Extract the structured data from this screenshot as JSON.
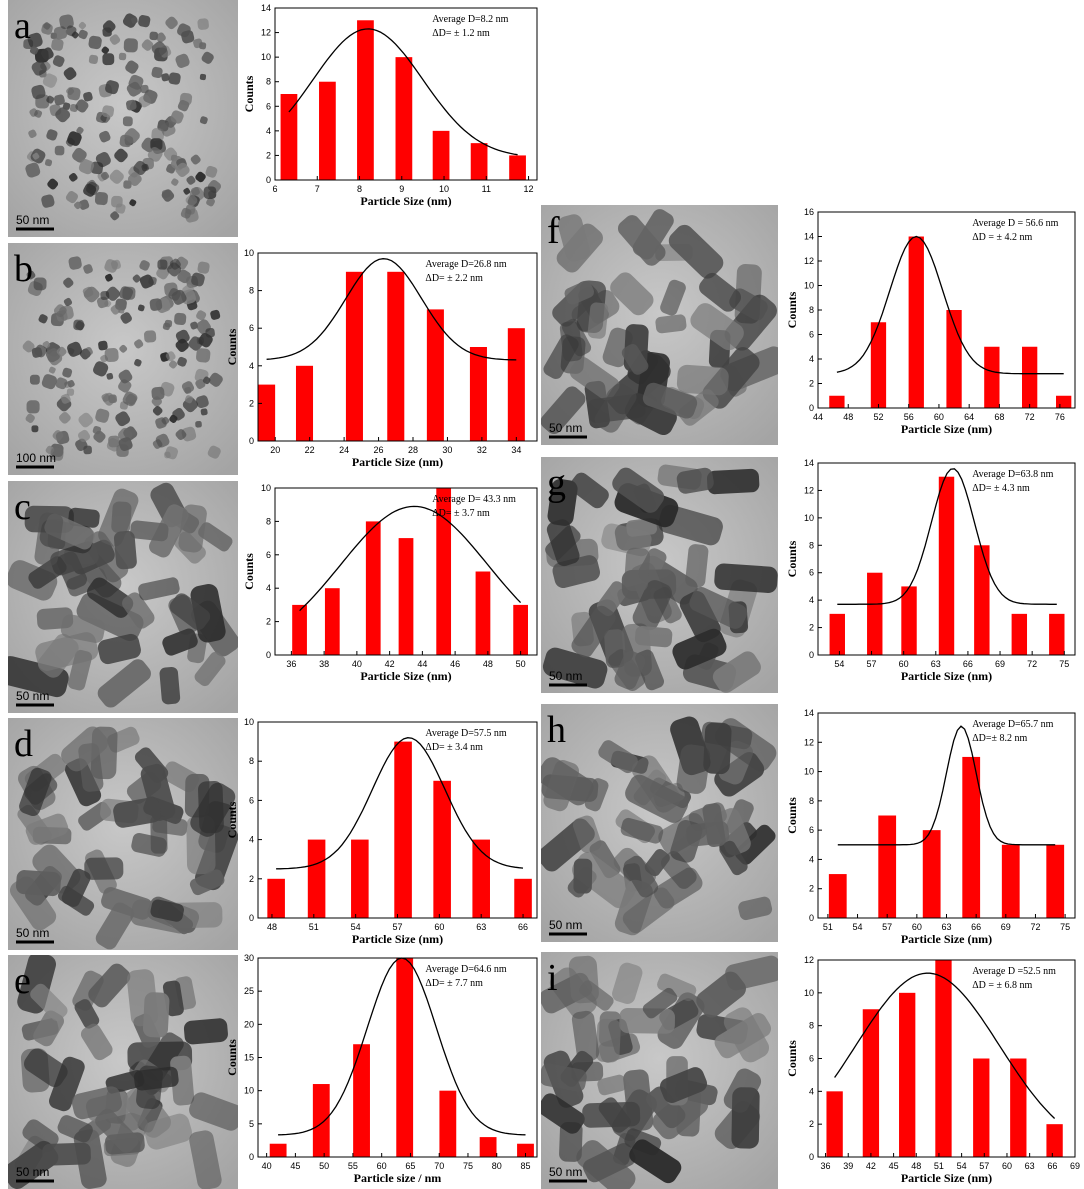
{
  "chart_data": [
    {
      "type": "bar",
      "panel_label": "a",
      "scale_bar": "50 nm",
      "x": [
        6.33,
        7.24,
        8.14,
        9.05,
        9.93,
        10.83,
        11.74
      ],
      "values": [
        7,
        8,
        13,
        10,
        4,
        3,
        2
      ],
      "color": "#ff0000",
      "xlim": [
        6,
        12.2
      ],
      "xticks": [
        6,
        7,
        8,
        9,
        10,
        11,
        12
      ],
      "ylim": [
        0,
        14
      ],
      "yticks": [
        0,
        2,
        4,
        6,
        8,
        10,
        12,
        14
      ],
      "xlabel": "Particle Size (nm)",
      "ylabel": "Counts",
      "annotations": [
        "Average  D=8.2 nm",
        "ΔD= ± 1.2 nm"
      ],
      "fit": {
        "center": 8.2,
        "height": 10.5,
        "base": 1.8,
        "sigma": 1.3
      }
    },
    {
      "type": "bar",
      "panel_label": "b",
      "scale_bar": "100 nm",
      "x": [
        19.5,
        21.7,
        24.6,
        27.0,
        29.3,
        31.8,
        34.0
      ],
      "values": [
        3,
        4,
        9,
        9,
        7,
        5,
        6
      ],
      "color": "#ff0000",
      "xlim": [
        19,
        35.2
      ],
      "xticks": [
        20,
        22,
        24,
        26,
        28,
        30,
        32,
        34
      ],
      "ylim": [
        0,
        10
      ],
      "yticks": [
        0,
        2,
        4,
        6,
        8,
        10
      ],
      "xlabel": "Particle Size (nm)",
      "ylabel": "Counts",
      "annotations": [
        "Average D=26.8 nm",
        "ΔD= ± 2.2 nm"
      ],
      "fit": {
        "center": 26.3,
        "height": 5.4,
        "base": 4.3,
        "sigma": 2.2
      }
    },
    {
      "type": "bar",
      "panel_label": "c",
      "scale_bar": "50 nm",
      "x": [
        36.5,
        38.5,
        41.0,
        43.0,
        45.3,
        47.7,
        50.0
      ],
      "values": [
        3,
        4,
        8,
        7,
        10,
        5,
        3
      ],
      "color": "#ff0000",
      "xlim": [
        35,
        51
      ],
      "xticks": [
        36,
        38,
        40,
        42,
        44,
        46,
        48,
        50
      ],
      "ylim": [
        0,
        10
      ],
      "yticks": [
        0,
        2,
        4,
        6,
        8,
        10
      ],
      "xlabel": "Particle Size (nm)",
      "ylabel": "Counts",
      "annotations": [
        "Average D= 43.3 nm",
        "ΔD= ± 3.7 nm"
      ],
      "fit": {
        "center": 43.5,
        "height": 8.9,
        "base": 0,
        "sigma": 4.5
      }
    },
    {
      "type": "bar",
      "panel_label": "d",
      "scale_bar": "50 nm",
      "x": [
        48.3,
        51.2,
        54.3,
        57.4,
        60.2,
        63.0,
        66.0
      ],
      "values": [
        2,
        4,
        4,
        9,
        7,
        4,
        2
      ],
      "color": "#ff0000",
      "xlim": [
        47,
        67
      ],
      "xticks": [
        48,
        51,
        54,
        57,
        60,
        63,
        66
      ],
      "ylim": [
        0,
        10
      ],
      "yticks": [
        0,
        2,
        4,
        6,
        8,
        10
      ],
      "xlabel": "Particle Size (nm)",
      "ylabel": "Counts",
      "annotations": [
        "Average D=57.5 nm",
        "ΔD= ± 3.4 nm"
      ],
      "fit": {
        "center": 57.8,
        "height": 6.7,
        "base": 2.5,
        "sigma": 2.6
      }
    },
    {
      "type": "bar",
      "panel_label": "e",
      "scale_bar": "50 nm",
      "x": [
        42,
        49.5,
        56.5,
        64,
        71.5,
        78.5,
        85
      ],
      "values": [
        2,
        11,
        17,
        30,
        10,
        3,
        2
      ],
      "color": "#ff0000",
      "xlim": [
        38.5,
        87
      ],
      "xticks": [
        40,
        45,
        50,
        55,
        60,
        65,
        70,
        75,
        80,
        85
      ],
      "ylim": [
        0,
        30
      ],
      "yticks": [
        0,
        5,
        10,
        15,
        20,
        25,
        30
      ],
      "xlabel": "Particle size / nm",
      "ylabel": "Counts",
      "annotations": [
        "Average D=64.6 nm",
        "ΔD= ± 7.7 nm"
      ],
      "fit": {
        "center": 63.5,
        "height": 26.7,
        "base": 3.3,
        "sigma": 6
      }
    },
    {
      "type": "bar",
      "panel_label": "f",
      "scale_bar": "50 nm",
      "x": [
        46.5,
        52,
        57,
        62,
        67,
        72,
        76.5
      ],
      "values": [
        1,
        7,
        14,
        8,
        5,
        5,
        1
      ],
      "color": "#ff0000",
      "xlim": [
        44,
        78
      ],
      "xticks": [
        44,
        48,
        52,
        56,
        60,
        64,
        68,
        72,
        76
      ],
      "ylim": [
        0,
        16
      ],
      "yticks": [
        0,
        2,
        4,
        6,
        8,
        10,
        12,
        14,
        16
      ],
      "xlabel": "Particle Size (nm)",
      "ylabel": "Counts",
      "annotations": [
        "Average D = 56.6 nm",
        "ΔD = ± 4.2 nm"
      ],
      "fit": {
        "center": 57,
        "height": 11.2,
        "base": 2.8,
        "sigma": 3.5
      }
    },
    {
      "type": "bar",
      "panel_label": "g",
      "scale_bar": "50 nm",
      "x": [
        53.8,
        57.3,
        60.5,
        64,
        67.3,
        70.8,
        74.3
      ],
      "values": [
        3,
        6,
        5,
        13,
        8,
        3,
        3
      ],
      "color": "#ff0000",
      "xlim": [
        52,
        76
      ],
      "xticks": [
        54,
        57,
        60,
        63,
        66,
        69,
        72,
        75
      ],
      "ylim": [
        0,
        14
      ],
      "yticks": [
        0,
        2,
        4,
        6,
        8,
        10,
        12,
        14
      ],
      "xlabel": "Particle Size (nm)",
      "ylabel": "Counts",
      "annotations": [
        "Average D=63.8 nm",
        "ΔD= ± 4.3 nm"
      ],
      "fit": {
        "center": 64.6,
        "height": 9.9,
        "base": 3.7,
        "sigma": 2
      }
    },
    {
      "type": "bar",
      "panel_label": "h",
      "scale_bar": "50 nm",
      "x": [
        52,
        57,
        61.5,
        65.5,
        69.5,
        74
      ],
      "values": [
        3,
        7,
        6,
        11,
        5,
        5
      ],
      "color": "#ff0000",
      "xlim": [
        50,
        76
      ],
      "xticks": [
        51,
        54,
        57,
        60,
        63,
        66,
        69,
        72,
        75
      ],
      "ylim": [
        0,
        14
      ],
      "yticks": [
        0,
        2,
        4,
        6,
        8,
        10,
        12,
        14
      ],
      "xlabel": "Particle Size (nm)",
      "ylabel": "Counts",
      "annotations": [
        "Average D=65.7 nm",
        "ΔD=± 8.2 nm"
      ],
      "fit": {
        "center": 64.5,
        "height": 8.1,
        "base": 5,
        "sigma": 1.5
      }
    },
    {
      "type": "bar",
      "panel_label": "i",
      "scale_bar": "50 nm",
      "x": [
        37.2,
        42,
        46.8,
        51.6,
        56.6,
        61.5,
        66.3
      ],
      "values": [
        4,
        9,
        10,
        12,
        6,
        6,
        2
      ],
      "color": "#ff0000",
      "xlim": [
        35,
        69
      ],
      "xticks": [
        36,
        39,
        42,
        45,
        48,
        51,
        54,
        57,
        60,
        63,
        66,
        69
      ],
      "ylim": [
        0,
        12
      ],
      "yticks": [
        0,
        2,
        4,
        6,
        8,
        10,
        12
      ],
      "xlabel": "Particle Size (nm)",
      "ylabel": "Counts",
      "annotations": [
        "Average D =52.5 nm",
        "ΔD = ± 6.8 nm"
      ],
      "fit": {
        "center": 49.5,
        "height": 11.2,
        "base": 0,
        "sigma": 9.5
      }
    }
  ]
}
